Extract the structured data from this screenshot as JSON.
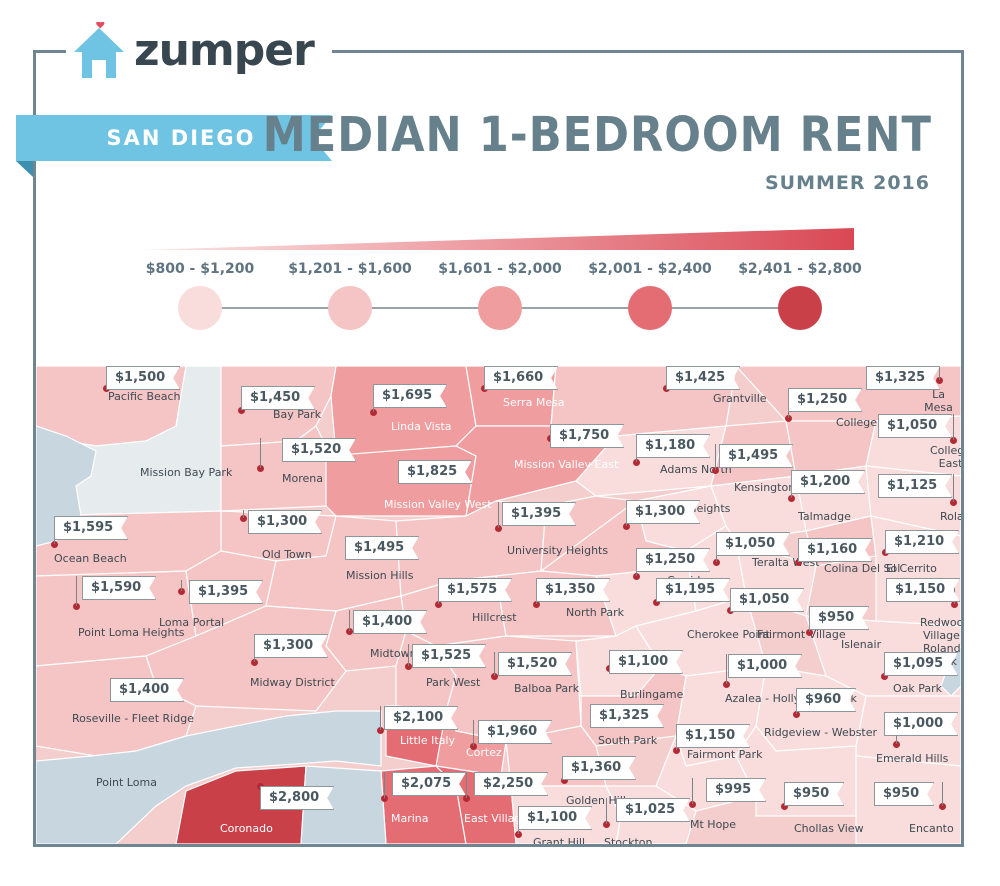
{
  "brand": {
    "name": "zumper",
    "accent": "#6fc3e3",
    "heart": "#e74c5e"
  },
  "city": "SAN DIEGO",
  "title": "MEDIAN 1-BEDROOM RENT",
  "subtitle": "SUMMER 2016",
  "legend": {
    "bins": [
      {
        "label": "$800 - $1,200",
        "color": "#f9dcdc"
      },
      {
        "label": "$1,201 - $1,600",
        "color": "#f5c4c4"
      },
      {
        "label": "$1,601 - $2,000",
        "color": "#ef9d9f"
      },
      {
        "label": "$2,001 - $2,400",
        "color": "#e46c73"
      },
      {
        "label": "$2,401 - $2,800",
        "color": "#c94048"
      }
    ]
  },
  "colors": {
    "water": "#c8d6df",
    "no_data": "#e6ebee",
    "border": "#ffffff"
  },
  "neighborhoods": [
    {
      "name": "Pacific Beach",
      "rent": "$1,500"
    },
    {
      "name": "Mission Bay Park",
      "rent": ""
    },
    {
      "name": "Bay Park",
      "rent": "$1,450"
    },
    {
      "name": "Linda Vista",
      "rent": "$1,695"
    },
    {
      "name": "Serra Mesa",
      "rent": "$1,660"
    },
    {
      "name": "Grantville",
      "rent": "$1,425"
    },
    {
      "name": "La Mesa",
      "rent": "$1,325"
    },
    {
      "name": "College West",
      "rent": "$1,250"
    },
    {
      "name": "College East",
      "rent": "$1,050"
    },
    {
      "name": "Morena",
      "rent": "$1,520"
    },
    {
      "name": "Mission Valley East",
      "rent": "$1,750"
    },
    {
      "name": "Adams North",
      "rent": "$1,180"
    },
    {
      "name": "Kensington",
      "rent": "$1,495"
    },
    {
      "name": "Mission Valley West",
      "rent": "$1,825"
    },
    {
      "name": "Talmadge",
      "rent": "$1,200"
    },
    {
      "name": "Rolando",
      "rent": "$1,125"
    },
    {
      "name": "Ocean Beach",
      "rent": "$1,595"
    },
    {
      "name": "Old Town",
      "rent": "$1,300"
    },
    {
      "name": "University Heights",
      "rent": "$1,395"
    },
    {
      "name": "Normal Heights",
      "rent": "$1,300"
    },
    {
      "name": "Mission Hills",
      "rent": "$1,495"
    },
    {
      "name": "Teralta West",
      "rent": "$1,050"
    },
    {
      "name": "Colina Del Sol",
      "rent": "$1,160"
    },
    {
      "name": "El Cerrito",
      "rent": "$1,210"
    },
    {
      "name": "Corridor",
      "rent": "$1,250"
    },
    {
      "name": "Point Loma Heights",
      "rent": "$1,590"
    },
    {
      "name": "Loma Portal",
      "rent": "$1,395"
    },
    {
      "name": "Hillcrest",
      "rent": "$1,575"
    },
    {
      "name": "North Park",
      "rent": "$1,350"
    },
    {
      "name": "Redwood Village - Rolando Park",
      "rent": "$1,150"
    },
    {
      "name": "Cherokee Point",
      "rent": "$1,195"
    },
    {
      "name": "Fairmont Village",
      "rent": "$1,050"
    },
    {
      "name": "Islenair",
      "rent": "$950"
    },
    {
      "name": "Midtown",
      "rent": "$1,400"
    },
    {
      "name": "Midway District",
      "rent": "$1,300"
    },
    {
      "name": "Park West",
      "rent": "$1,525"
    },
    {
      "name": "Balboa Park",
      "rent": "$1,520"
    },
    {
      "name": "Burlingame",
      "rent": "$1,100"
    },
    {
      "name": "Azalea - Hollywood Park",
      "rent": "$1,000"
    },
    {
      "name": "Oak Park",
      "rent": "$1,095"
    },
    {
      "name": "Roseville - Fleet Ridge",
      "rent": "$1,400"
    },
    {
      "name": "Little Italy",
      "rent": "$2,100"
    },
    {
      "name": "Cortez",
      "rent": "$1,960"
    },
    {
      "name": "South Park",
      "rent": "$1,325"
    },
    {
      "name": "Ridgeview - Webster",
      "rent": "$960"
    },
    {
      "name": "Fairmont Park",
      "rent": "$1,150"
    },
    {
      "name": "Emerald Hills",
      "rent": "$1,000"
    },
    {
      "name": "Point Loma",
      "rent": ""
    },
    {
      "name": "Golden Hill",
      "rent": "$1,360"
    },
    {
      "name": "Coronado",
      "rent": "$2,800"
    },
    {
      "name": "Marina",
      "rent": "$2,075"
    },
    {
      "name": "East Village",
      "rent": "$2,250"
    },
    {
      "name": "Mt Hope",
      "rent": "$995"
    },
    {
      "name": "Chollas View",
      "rent": "$950"
    },
    {
      "name": "Encanto",
      "rent": "$950"
    },
    {
      "name": "Grant Hill",
      "rent": "$1,100"
    },
    {
      "name": "Stockton",
      "rent": "$1,025"
    }
  ]
}
